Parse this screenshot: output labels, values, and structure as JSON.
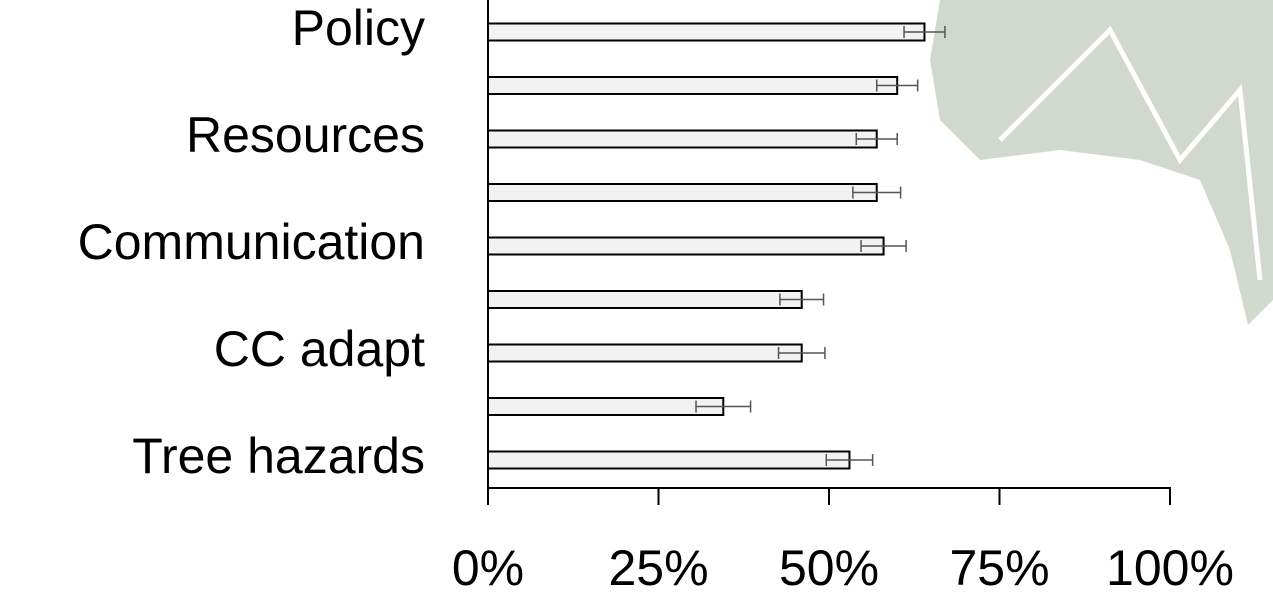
{
  "chart_data": {
    "type": "bar",
    "orientation": "horizontal",
    "categories": [
      "Policy",
      null,
      "Resources",
      null,
      "Communication",
      null,
      "CC adapt",
      null,
      "Tree hazards"
    ],
    "values": [
      64,
      60,
      57,
      57,
      58,
      46,
      46,
      34.5,
      53
    ],
    "errors": [
      3,
      3,
      3,
      3.5,
      3.3,
      3.2,
      3.4,
      4,
      3.4
    ],
    "color": "#f2f2f2",
    "xlim": [
      0,
      100
    ],
    "xticks": [
      {
        "value": 0,
        "label": "0%"
      },
      {
        "value": 25,
        "label": "25%"
      },
      {
        "value": 50,
        "label": "50%"
      },
      {
        "value": 75,
        "label": "75%"
      },
      {
        "value": 100,
        "label": "100%"
      }
    ],
    "grid": false
  }
}
